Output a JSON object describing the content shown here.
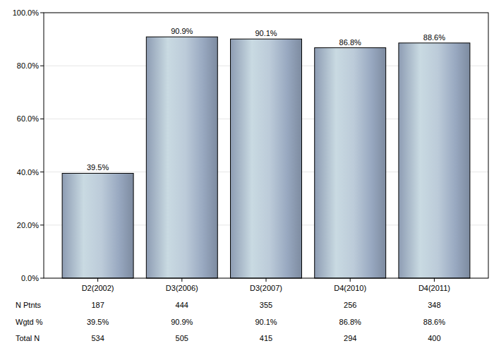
{
  "chart_data": {
    "type": "bar",
    "categories": [
      "D2(2002)",
      "D3(2006)",
      "D3(2007)",
      "D4(2010)",
      "D4(2011)"
    ],
    "values": [
      39.5,
      90.9,
      90.1,
      86.8,
      88.6
    ],
    "value_labels": [
      "39.5%",
      "90.9%",
      "90.1%",
      "86.8%",
      "88.6%"
    ],
    "data_labels": true,
    "ylim": [
      0,
      100
    ],
    "yticks": [
      {
        "value": 0,
        "label": "0.0%"
      },
      {
        "value": 20,
        "label": "20.0%"
      },
      {
        "value": 40,
        "label": "40.0%"
      },
      {
        "value": 60,
        "label": "60.0%"
      },
      {
        "value": 80,
        "label": "80.0%"
      },
      {
        "value": 100,
        "label": "100.0%"
      }
    ],
    "grid": true
  },
  "table": {
    "rows": [
      {
        "label": "N Ptnts",
        "cells": [
          187,
          444,
          355,
          256,
          348
        ]
      },
      {
        "label": "Wgtd %",
        "cells": [
          "39.5%",
          "90.9%",
          "90.1%",
          "86.8%",
          "88.6%"
        ]
      },
      {
        "label": "Total N",
        "cells": [
          534,
          505,
          415,
          294,
          400
        ]
      }
    ]
  }
}
